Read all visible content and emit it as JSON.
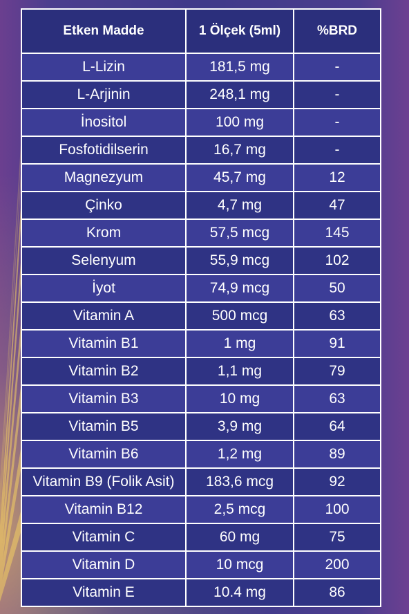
{
  "colors": {
    "table_background": "#2a2f7a",
    "row_odd": "#3c3d97",
    "row_even": "#2f3384",
    "border": "#ffffff",
    "rays": "#f4cf63"
  },
  "table": {
    "headers": [
      "Etken Madde",
      "1 Ölçek (5ml)",
      "%BRD"
    ],
    "rows": [
      [
        "L-Lizin",
        "181,5 mg",
        "-"
      ],
      [
        "L-Arjinin",
        "248,1 mg",
        "-"
      ],
      [
        "İnositol",
        "100 mg",
        "-"
      ],
      [
        "Fosfotidilserin",
        "16,7 mg",
        "-"
      ],
      [
        "Magnezyum",
        "45,7 mg",
        "12"
      ],
      [
        "Çinko",
        "4,7 mg",
        "47"
      ],
      [
        "Krom",
        "57,5 mcg",
        "145"
      ],
      [
        "Selenyum",
        "55,9 mcg",
        "102"
      ],
      [
        "İyot",
        "74,9 mcg",
        "50"
      ],
      [
        "Vitamin A",
        "500 mcg",
        "63"
      ],
      [
        "Vitamin B1",
        "1 mg",
        "91"
      ],
      [
        "Vitamin B2",
        "1,1 mg",
        "79"
      ],
      [
        "Vitamin B3",
        "10 mg",
        "63"
      ],
      [
        "Vitamin B5",
        "3,9 mg",
        "64"
      ],
      [
        "Vitamin B6",
        "1,2 mg",
        "89"
      ],
      [
        "Vitamin B9 (Folik Asit)",
        "183,6 mcg",
        "92"
      ],
      [
        "Vitamin B12",
        "2,5 mcg",
        "100"
      ],
      [
        "Vitamin C",
        "60 mg",
        "75"
      ],
      [
        "Vitamin D",
        "10 mcg",
        "200"
      ],
      [
        "Vitamin E",
        "10.4 mg",
        "86"
      ]
    ]
  }
}
